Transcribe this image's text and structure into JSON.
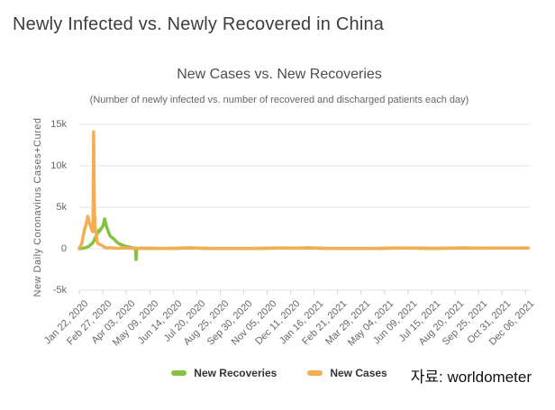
{
  "page": {
    "title": "Newly Infected vs. Newly Recovered in China",
    "source_label": "자료: worldometer"
  },
  "chart_data": {
    "type": "line",
    "title": "New Cases vs. New Recoveries",
    "subtitle": "(Number of newly infected vs. number of recovered and discharged patients each day)",
    "ylabel": "New Daily Coronavirus Cases+Cured",
    "xlabel": "",
    "ylim": [
      -5000,
      15000
    ],
    "xlim": [
      0,
      692
    ],
    "grid": true,
    "legend_position": "bottom-center",
    "x_unit": "days since Jan 22, 2020",
    "yticks": [
      {
        "value": 15000,
        "label": "15k"
      },
      {
        "value": 10000,
        "label": "10k"
      },
      {
        "value": 5000,
        "label": "5k"
      },
      {
        "value": 0,
        "label": "0"
      },
      {
        "value": -5000,
        "label": "-5k"
      }
    ],
    "xticks": [
      {
        "day": 0,
        "label": "Jan 22, 2020"
      },
      {
        "day": 36,
        "label": "Feb 27, 2020"
      },
      {
        "day": 72,
        "label": "Apr 03, 2020"
      },
      {
        "day": 108,
        "label": "May 09, 2020"
      },
      {
        "day": 144,
        "label": "Jun 14, 2020"
      },
      {
        "day": 180,
        "label": "Jul 20, 2020"
      },
      {
        "day": 216,
        "label": "Aug 25, 2020"
      },
      {
        "day": 252,
        "label": "Sep 30, 2020"
      },
      {
        "day": 288,
        "label": "Nov 05, 2020"
      },
      {
        "day": 324,
        "label": "Dec 11, 2020"
      },
      {
        "day": 360,
        "label": "Jan 16, 2021"
      },
      {
        "day": 396,
        "label": "Feb 21, 2021"
      },
      {
        "day": 432,
        "label": "Mar 29, 2021"
      },
      {
        "day": 468,
        "label": "May 04, 2021"
      },
      {
        "day": 504,
        "label": "Jun 09, 2021"
      },
      {
        "day": 540,
        "label": "Jul 15, 2021"
      },
      {
        "day": 576,
        "label": "Aug 20, 2021"
      },
      {
        "day": 612,
        "label": "Sep 25, 2021"
      },
      {
        "day": 648,
        "label": "Oct 31, 2021"
      },
      {
        "day": 684,
        "label": "Dec 06, 2021"
      }
    ],
    "series": [
      {
        "name": "New Recoveries",
        "color": "#85C23D",
        "points": [
          [
            0,
            0
          ],
          [
            3,
            30
          ],
          [
            6,
            60
          ],
          [
            9,
            110
          ],
          [
            12,
            180
          ],
          [
            15,
            300
          ],
          [
            17,
            450
          ],
          [
            19,
            600
          ],
          [
            21,
            750
          ],
          [
            23,
            1100
          ],
          [
            25,
            1400
          ],
          [
            27,
            1700
          ],
          [
            28,
            1900
          ],
          [
            29,
            2100
          ],
          [
            30,
            2000
          ],
          [
            31,
            2300
          ],
          [
            32,
            2200
          ],
          [
            34,
            2500
          ],
          [
            36,
            2700
          ],
          [
            37,
            2950
          ],
          [
            38,
            3250
          ],
          [
            39,
            3600
          ],
          [
            40,
            3200
          ],
          [
            41,
            2900
          ],
          [
            42,
            2600
          ],
          [
            43,
            2400
          ],
          [
            44,
            2200
          ],
          [
            45,
            1950
          ],
          [
            46,
            1750
          ],
          [
            47,
            1600
          ],
          [
            48,
            1500
          ],
          [
            49,
            1400
          ],
          [
            50,
            1350
          ],
          [
            52,
            1250
          ],
          [
            54,
            1100
          ],
          [
            56,
            920
          ],
          [
            58,
            760
          ],
          [
            60,
            650
          ],
          [
            62,
            560
          ],
          [
            64,
            480
          ],
          [
            66,
            430
          ],
          [
            68,
            380
          ],
          [
            70,
            330
          ],
          [
            72,
            280
          ],
          [
            75,
            220
          ],
          [
            78,
            170
          ],
          [
            81,
            120
          ],
          [
            84,
            80
          ],
          [
            86,
            60
          ],
          [
            87,
            -1300
          ],
          [
            88,
            50
          ],
          [
            90,
            45
          ],
          [
            95,
            60
          ],
          [
            100,
            50
          ],
          [
            110,
            40
          ],
          [
            120,
            35
          ],
          [
            130,
            30
          ],
          [
            140,
            40
          ],
          [
            150,
            45
          ],
          [
            160,
            70
          ],
          [
            170,
            90
          ],
          [
            180,
            60
          ],
          [
            200,
            35
          ],
          [
            220,
            25
          ],
          [
            240,
            30
          ],
          [
            260,
            30
          ],
          [
            280,
            40
          ],
          [
            300,
            60
          ],
          [
            320,
            70
          ],
          [
            340,
            60
          ],
          [
            360,
            80
          ],
          [
            380,
            40
          ],
          [
            400,
            25
          ],
          [
            420,
            25
          ],
          [
            440,
            30
          ],
          [
            460,
            35
          ],
          [
            480,
            60
          ],
          [
            500,
            80
          ],
          [
            520,
            60
          ],
          [
            540,
            45
          ],
          [
            560,
            50
          ],
          [
            580,
            70
          ],
          [
            600,
            90
          ],
          [
            620,
            70
          ],
          [
            640,
            75
          ],
          [
            660,
            80
          ],
          [
            688,
            90
          ]
        ]
      },
      {
        "name": "New Cases",
        "color": "#F3AE54",
        "points": [
          [
            0,
            100
          ],
          [
            2,
            300
          ],
          [
            4,
            700
          ],
          [
            6,
            1500
          ],
          [
            8,
            2300
          ],
          [
            10,
            2800
          ],
          [
            12,
            3500
          ],
          [
            13,
            3900
          ],
          [
            14,
            3700
          ],
          [
            15,
            3200
          ],
          [
            16,
            3000
          ],
          [
            17,
            2800
          ],
          [
            18,
            2600
          ],
          [
            19,
            2250
          ],
          [
            20,
            2100
          ],
          [
            21,
            2050
          ],
          [
            22,
            14100
          ],
          [
            23,
            5100
          ],
          [
            24,
            2700
          ],
          [
            25,
            2100
          ],
          [
            26,
            1900
          ],
          [
            27,
            1000
          ],
          [
            28,
            700
          ],
          [
            30,
            560
          ],
          [
            32,
            480
          ],
          [
            34,
            420
          ],
          [
            36,
            350
          ],
          [
            38,
            200
          ],
          [
            40,
            130
          ],
          [
            44,
            80
          ],
          [
            48,
            120
          ],
          [
            52,
            90
          ],
          [
            56,
            60
          ],
          [
            60,
            40
          ],
          [
            65,
            80
          ],
          [
            70,
            100
          ],
          [
            75,
            70
          ],
          [
            80,
            50
          ],
          [
            86,
            40
          ],
          [
            90,
            30
          ],
          [
            100,
            50
          ],
          [
            110,
            70
          ],
          [
            120,
            40
          ],
          [
            130,
            30
          ],
          [
            140,
            50
          ],
          [
            150,
            60
          ],
          [
            160,
            100
          ],
          [
            170,
            120
          ],
          [
            180,
            90
          ],
          [
            190,
            60
          ],
          [
            200,
            40
          ],
          [
            210,
            30
          ],
          [
            220,
            25
          ],
          [
            230,
            30
          ],
          [
            240,
            40
          ],
          [
            250,
            30
          ],
          [
            260,
            35
          ],
          [
            270,
            40
          ],
          [
            280,
            50
          ],
          [
            290,
            70
          ],
          [
            300,
            90
          ],
          [
            310,
            100
          ],
          [
            320,
            80
          ],
          [
            330,
            70
          ],
          [
            340,
            90
          ],
          [
            350,
            130
          ],
          [
            356,
            110
          ],
          [
            365,
            70
          ],
          [
            375,
            40
          ],
          [
            385,
            25
          ],
          [
            395,
            20
          ],
          [
            410,
            25
          ],
          [
            425,
            35
          ],
          [
            440,
            30
          ],
          [
            455,
            40
          ],
          [
            470,
            60
          ],
          [
            485,
            100
          ],
          [
            500,
            90
          ],
          [
            515,
            70
          ],
          [
            530,
            50
          ],
          [
            545,
            40
          ],
          [
            560,
            60
          ],
          [
            575,
            90
          ],
          [
            590,
            110
          ],
          [
            605,
            80
          ],
          [
            620,
            70
          ],
          [
            635,
            90
          ],
          [
            650,
            80
          ],
          [
            665,
            85
          ],
          [
            680,
            95
          ],
          [
            688,
            100
          ]
        ]
      }
    ]
  }
}
